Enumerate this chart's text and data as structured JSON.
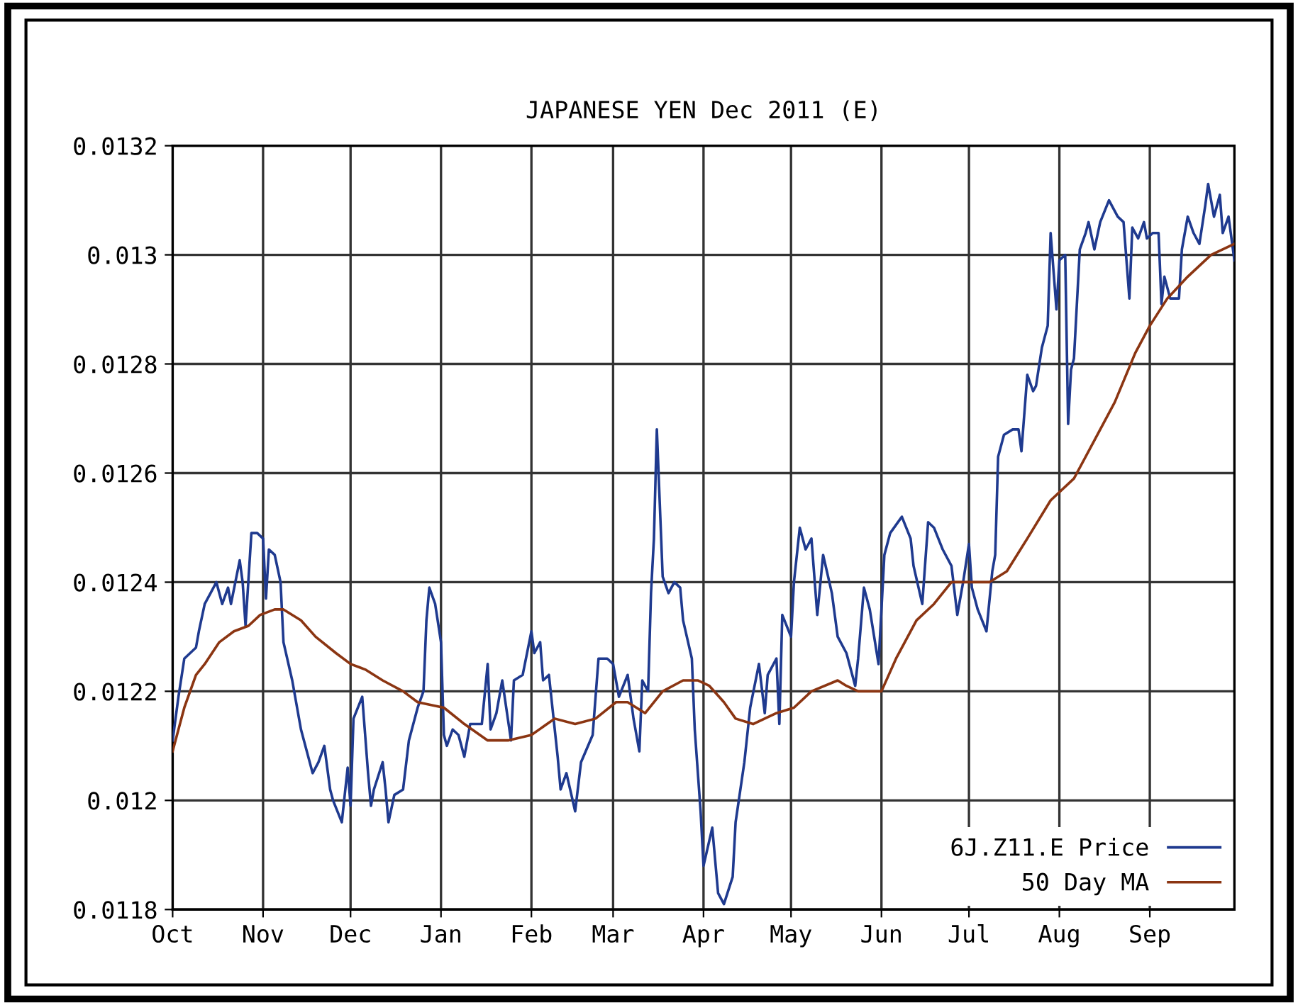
{
  "chart_data": {
    "type": "line",
    "title": "JAPANESE YEN Dec 2011 (E)",
    "xlim": [
      "2010-10-01",
      "2011-09-30"
    ],
    "xticks": [
      {
        "value": "2010-10-01",
        "label": "Oct"
      },
      {
        "value": "2010-11-01",
        "label": "Nov"
      },
      {
        "value": "2010-12-01",
        "label": "Dec"
      },
      {
        "value": "2011-01-01",
        "label": "Jan"
      },
      {
        "value": "2011-02-01",
        "label": "Feb"
      },
      {
        "value": "2011-03-01",
        "label": "Mar"
      },
      {
        "value": "2011-04-01",
        "label": "Apr"
      },
      {
        "value": "2011-05-01",
        "label": "May"
      },
      {
        "value": "2011-06-01",
        "label": "Jun"
      },
      {
        "value": "2011-07-01",
        "label": "Jul"
      },
      {
        "value": "2011-08-01",
        "label": "Aug"
      },
      {
        "value": "2011-09-01",
        "label": "Sep"
      }
    ],
    "ylim": [
      0.0118,
      0.0132
    ],
    "yticks": [
      0.0118,
      0.012,
      0.0122,
      0.0124,
      0.0126,
      0.0128,
      0.013,
      0.0132
    ],
    "grid": true,
    "legend": "bottom right",
    "marker": "none",
    "line_style": "solid",
    "series": [
      {
        "name": "6J.Z11.E Price",
        "color": "#1f3a8f",
        "x": [
          "2010-10-01",
          "2010-10-03",
          "2010-10-05",
          "2010-10-07",
          "2010-10-09",
          "2010-10-10",
          "2010-10-12",
          "2010-10-14",
          "2010-10-16",
          "2010-10-18",
          "2010-10-20",
          "2010-10-21",
          "2010-10-24",
          "2010-10-25",
          "2010-10-26",
          "2010-10-28",
          "2010-10-30",
          "2010-11-01",
          "2010-11-02",
          "2010-11-03",
          "2010-11-05",
          "2010-11-07",
          "2010-11-08",
          "2010-11-11",
          "2010-11-14",
          "2010-11-18",
          "2010-11-20",
          "2010-11-22",
          "2010-11-24",
          "2010-11-25",
          "2010-11-28",
          "2010-11-30",
          "2010-12-01",
          "2010-12-02",
          "2010-12-05",
          "2010-12-07",
          "2010-12-08",
          "2010-12-09",
          "2010-12-12",
          "2010-12-13",
          "2010-12-14",
          "2010-12-16",
          "2010-12-19",
          "2010-12-21",
          "2010-12-24",
          "2010-12-26",
          "2010-12-27",
          "2010-12-28",
          "2010-12-30",
          "2011-01-01",
          "2011-01-02",
          "2011-01-03",
          "2011-01-05",
          "2011-01-07",
          "2011-01-09",
          "2011-01-11",
          "2011-01-15",
          "2011-01-17",
          "2011-01-18",
          "2011-01-20",
          "2011-01-22",
          "2011-01-25",
          "2011-01-26",
          "2011-01-29",
          "2011-02-01",
          "2011-02-02",
          "2011-02-04",
          "2011-02-05",
          "2011-02-07",
          "2011-02-10",
          "2011-02-11",
          "2011-02-13",
          "2011-02-16",
          "2011-02-18",
          "2011-02-22",
          "2011-02-24",
          "2011-02-27",
          "2011-03-01",
          "2011-03-03",
          "2011-03-06",
          "2011-03-08",
          "2011-03-10",
          "2011-03-11",
          "2011-03-13",
          "2011-03-14",
          "2011-03-15",
          "2011-03-16",
          "2011-03-18",
          "2011-03-20",
          "2011-03-22",
          "2011-03-24",
          "2011-03-25",
          "2011-03-28",
          "2011-03-29",
          "2011-03-31",
          "2011-04-01",
          "2011-04-04",
          "2011-04-06",
          "2011-04-08",
          "2011-04-11",
          "2011-04-12",
          "2011-04-15",
          "2011-04-17",
          "2011-04-20",
          "2011-04-22",
          "2011-04-23",
          "2011-04-26",
          "2011-04-27",
          "2011-04-28",
          "2011-05-01",
          "2011-05-02",
          "2011-05-04",
          "2011-05-06",
          "2011-05-08",
          "2011-05-10",
          "2011-05-12",
          "2011-05-15",
          "2011-05-17",
          "2011-05-20",
          "2011-05-23",
          "2011-05-24",
          "2011-05-26",
          "2011-05-28",
          "2011-05-31",
          "2011-06-02",
          "2011-06-04",
          "2011-06-08",
          "2011-06-11",
          "2011-06-12",
          "2011-06-15",
          "2011-06-17",
          "2011-06-19",
          "2011-06-22",
          "2011-06-25",
          "2011-06-27",
          "2011-06-29",
          "2011-07-01",
          "2011-07-02",
          "2011-07-04",
          "2011-07-07",
          "2011-07-09",
          "2011-07-10",
          "2011-07-11",
          "2011-07-13",
          "2011-07-16",
          "2011-07-18",
          "2011-07-19",
          "2011-07-21",
          "2011-07-23",
          "2011-07-24",
          "2011-07-26",
          "2011-07-28",
          "2011-07-29",
          "2011-07-31",
          "2011-08-01",
          "2011-08-03",
          "2011-08-04",
          "2011-08-05",
          "2011-08-06",
          "2011-08-08",
          "2011-08-10",
          "2011-08-11",
          "2011-08-13",
          "2011-08-15",
          "2011-08-18",
          "2011-08-21",
          "2011-08-23",
          "2011-08-24",
          "2011-08-25",
          "2011-08-26",
          "2011-08-28",
          "2011-08-30",
          "2011-08-31",
          "2011-09-02",
          "2011-09-04",
          "2011-09-05",
          "2011-09-06",
          "2011-09-08",
          "2011-09-11",
          "2011-09-12",
          "2011-09-14",
          "2011-09-16",
          "2011-09-18",
          "2011-09-20",
          "2011-09-21",
          "2011-09-23",
          "2011-09-25",
          "2011-09-26",
          "2011-09-28",
          "2011-09-30"
        ],
        "values": [
          0.01211,
          0.01219,
          0.01226,
          0.01227,
          0.01228,
          0.01231,
          0.01236,
          0.01238,
          0.0124,
          0.01236,
          0.01239,
          0.01236,
          0.01244,
          0.0124,
          0.01232,
          0.01249,
          0.01249,
          0.01248,
          0.01237,
          0.01246,
          0.01245,
          0.0124,
          0.01229,
          0.01222,
          0.01213,
          0.01205,
          0.01207,
          0.0121,
          0.01202,
          0.012,
          0.01196,
          0.01206,
          0.01199,
          0.01215,
          0.01219,
          0.01205,
          0.01199,
          0.01202,
          0.01207,
          0.01202,
          0.01196,
          0.01201,
          0.01202,
          0.01211,
          0.01217,
          0.0122,
          0.01233,
          0.01239,
          0.01236,
          0.01229,
          0.01212,
          0.0121,
          0.01213,
          0.01212,
          0.01208,
          0.01214,
          0.01214,
          0.01225,
          0.01213,
          0.01216,
          0.01222,
          0.01211,
          0.01222,
          0.01223,
          0.01231,
          0.01227,
          0.01229,
          0.01222,
          0.01223,
          0.01208,
          0.01202,
          0.01205,
          0.01198,
          0.01207,
          0.01212,
          0.01226,
          0.01226,
          0.01225,
          0.01219,
          0.01223,
          0.01215,
          0.01209,
          0.01222,
          0.0122,
          0.01238,
          0.01248,
          0.01268,
          0.01241,
          0.01238,
          0.0124,
          0.01239,
          0.01233,
          0.01226,
          0.01213,
          0.01198,
          0.01188,
          0.01195,
          0.01183,
          0.01181,
          0.01186,
          0.01196,
          0.01207,
          0.01217,
          0.01225,
          0.01216,
          0.01223,
          0.01226,
          0.01214,
          0.01234,
          0.0123,
          0.0124,
          0.0125,
          0.01246,
          0.01248,
          0.01234,
          0.01245,
          0.01238,
          0.0123,
          0.01227,
          0.01221,
          0.01226,
          0.01239,
          0.01235,
          0.01225,
          0.01245,
          0.01249,
          0.01252,
          0.01248,
          0.01243,
          0.01236,
          0.01251,
          0.0125,
          0.01246,
          0.01243,
          0.01234,
          0.0124,
          0.01247,
          0.01239,
          0.01235,
          0.01231,
          0.01242,
          0.01245,
          0.01263,
          0.01267,
          0.01268,
          0.01268,
          0.01264,
          0.01278,
          0.01275,
          0.01276,
          0.01283,
          0.01287,
          0.01304,
          0.0129,
          0.01299,
          0.013,
          0.01269,
          0.01279,
          0.01281,
          0.01301,
          0.01304,
          0.01306,
          0.01301,
          0.01306,
          0.0131,
          0.01307,
          0.01306,
          0.01299,
          0.01292,
          0.01305,
          0.01303,
          0.01306,
          0.01303,
          0.01304,
          0.01304,
          0.01291,
          0.01296,
          0.01292,
          0.01292,
          0.01301,
          0.01307,
          0.01304,
          0.01302,
          0.01309,
          0.01313,
          0.01307,
          0.01311,
          0.01304,
          0.01307,
          0.01299
        ]
      },
      {
        "name": "50 Day MA",
        "color": "#8b3512",
        "x": [
          "2010-10-01",
          "2010-10-05",
          "2010-10-09",
          "2010-10-12",
          "2010-10-17",
          "2010-10-22",
          "2010-10-27",
          "2010-10-31",
          "2010-11-05",
          "2010-11-08",
          "2010-11-14",
          "2010-11-19",
          "2010-11-26",
          "2010-12-01",
          "2010-12-06",
          "2010-12-12",
          "2010-12-19",
          "2010-12-24",
          "2011-01-02",
          "2011-01-09",
          "2011-01-17",
          "2011-01-24",
          "2011-02-01",
          "2011-02-09",
          "2011-02-16",
          "2011-02-23",
          "2011-03-02",
          "2011-03-06",
          "2011-03-12",
          "2011-03-18",
          "2011-03-25",
          "2011-03-30",
          "2011-04-03",
          "2011-04-08",
          "2011-04-12",
          "2011-04-18",
          "2011-04-26",
          "2011-05-02",
          "2011-05-08",
          "2011-05-17",
          "2011-05-20",
          "2011-05-24",
          "2011-05-30",
          "2011-06-01",
          "2011-06-06",
          "2011-06-13",
          "2011-06-19",
          "2011-06-25",
          "2011-07-01",
          "2011-07-08",
          "2011-07-14",
          "2011-07-21",
          "2011-07-29",
          "2011-08-06",
          "2011-08-13",
          "2011-08-20",
          "2011-08-27",
          "2011-09-01",
          "2011-09-07",
          "2011-09-14",
          "2011-09-22",
          "2011-09-30"
        ],
        "values": [
          0.01209,
          0.01217,
          0.01223,
          0.01225,
          0.01229,
          0.01231,
          0.01232,
          0.01234,
          0.01235,
          0.01235,
          0.01233,
          0.0123,
          0.01227,
          0.01225,
          0.01224,
          0.01222,
          0.0122,
          0.01218,
          0.01217,
          0.01214,
          0.01211,
          0.01211,
          0.01212,
          0.01215,
          0.01214,
          0.01215,
          0.01218,
          0.01218,
          0.01216,
          0.0122,
          0.01222,
          0.01222,
          0.01221,
          0.01218,
          0.01215,
          0.01214,
          0.01216,
          0.01217,
          0.0122,
          0.01222,
          0.01221,
          0.0122,
          0.0122,
          0.0122,
          0.01226,
          0.01233,
          0.01236,
          0.0124,
          0.0124,
          0.0124,
          0.01242,
          0.01248,
          0.01255,
          0.01259,
          0.01266,
          0.01273,
          0.01282,
          0.01287,
          0.01292,
          0.01296,
          0.013,
          0.01302
        ]
      }
    ]
  }
}
